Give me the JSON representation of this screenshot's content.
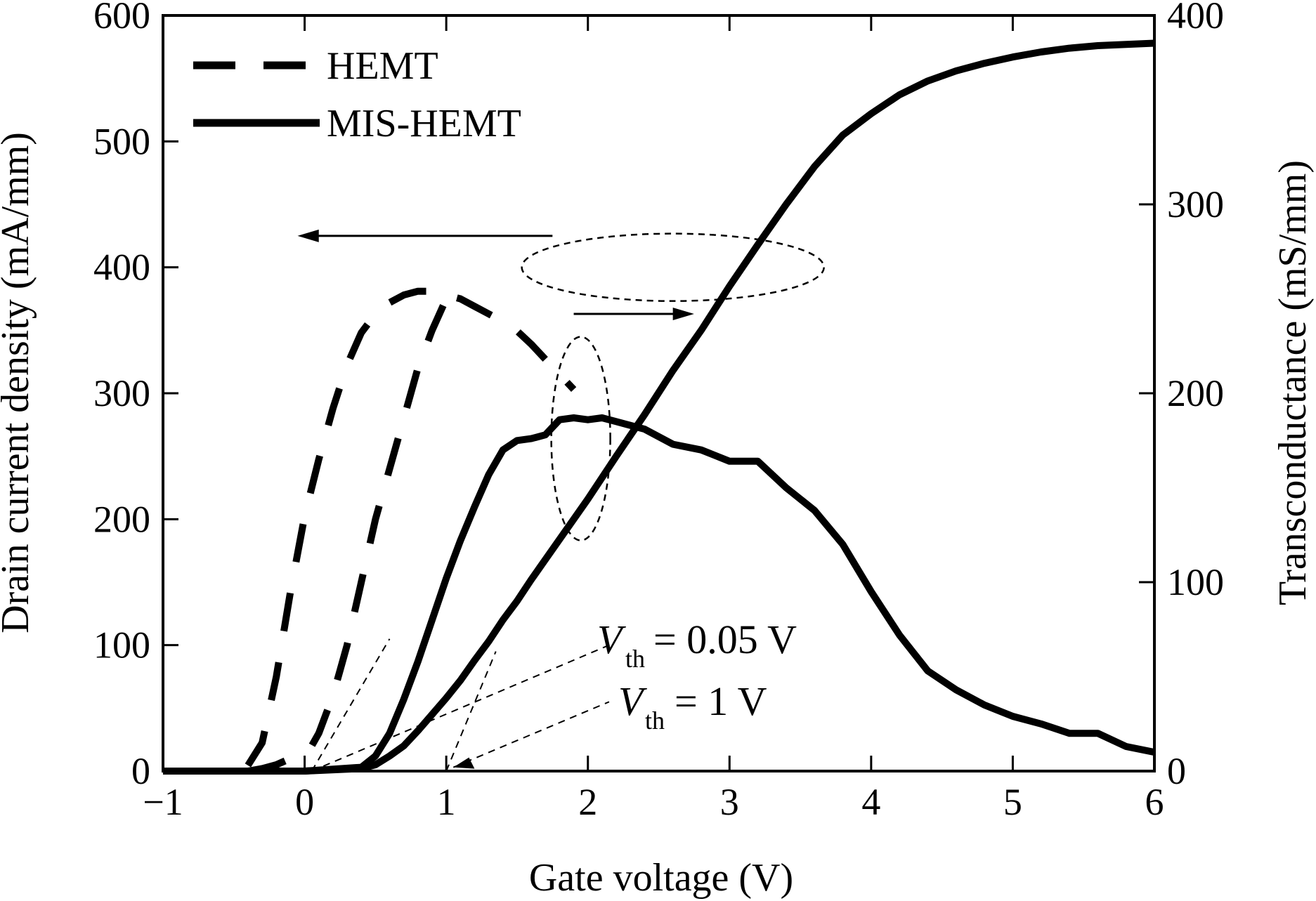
{
  "chart_data": {
    "type": "line",
    "xlabel": "Gate voltage (V)",
    "ylabel": "Drain current density (mA/mm)",
    "y2label": "Transconductance (mS/mm)",
    "xlim": [
      -1,
      6
    ],
    "ylim": [
      0,
      600
    ],
    "y2lim": [
      0,
      400
    ],
    "xticks": [
      "−1",
      "0",
      "1",
      "2",
      "3",
      "4",
      "5",
      "6"
    ],
    "yticks": [
      "0",
      "100",
      "200",
      "300",
      "400",
      "500",
      "600"
    ],
    "y2ticks": [
      "0",
      "100",
      "200",
      "300",
      "400"
    ],
    "legend_position": "top-left",
    "series": [
      {
        "name": "HEMT",
        "style": "dashed",
        "quantity": "drain current",
        "axis": "left",
        "x": [
          -0.4,
          -0.3,
          -0.2,
          -0.1,
          0.0,
          0.05,
          0.1,
          0.15,
          0.2,
          0.25,
          0.3,
          0.35,
          0.4,
          0.5,
          0.6,
          0.7,
          0.8,
          0.9,
          1.0,
          1.05
        ],
        "y": [
          0,
          2,
          5,
          10,
          15,
          20,
          30,
          45,
          60,
          80,
          100,
          125,
          150,
          200,
          240,
          280,
          320,
          350,
          375,
          380
        ]
      },
      {
        "name": "HEMT",
        "style": "dashed",
        "quantity": "transconductance",
        "axis": "right",
        "x": [
          -0.4,
          -0.3,
          -0.2,
          -0.1,
          0.0,
          0.1,
          0.2,
          0.3,
          0.4,
          0.5,
          0.6,
          0.7,
          0.8,
          0.9,
          1.0,
          1.1,
          1.2,
          1.3,
          1.4,
          1.5,
          1.6,
          1.7,
          1.8,
          1.9
        ],
        "y": [
          3,
          15,
          50,
          95,
          135,
          165,
          192,
          215,
          232,
          242,
          248,
          252,
          254,
          254,
          252,
          250,
          246,
          242,
          238,
          233,
          226,
          218,
          210,
          202
        ]
      },
      {
        "name": "MIS-HEMT",
        "style": "solid",
        "quantity": "drain current",
        "axis": "left",
        "x": [
          -1,
          0,
          0.4,
          0.5,
          0.6,
          0.7,
          0.8,
          0.9,
          1.0,
          1.1,
          1.2,
          1.3,
          1.4,
          1.5,
          1.6,
          1.7,
          1.8,
          1.9,
          2.0,
          2.2,
          2.4,
          2.6,
          2.8,
          3.0,
          3.2,
          3.4,
          3.6,
          3.8,
          4.0,
          4.2,
          4.4,
          4.6,
          4.8,
          5.0,
          5.2,
          5.4,
          5.6,
          5.8,
          6.0
        ],
        "y": [
          0,
          0,
          2,
          5,
          12,
          20,
          32,
          45,
          58,
          72,
          88,
          103,
          120,
          135,
          152,
          168,
          184,
          200,
          216,
          250,
          283,
          318,
          350,
          385,
          418,
          450,
          480,
          505,
          522,
          537,
          548,
          556,
          562,
          567,
          571,
          574,
          576,
          577,
          578
        ]
      },
      {
        "name": "MIS-HEMT",
        "style": "solid",
        "quantity": "transconductance",
        "axis": "right",
        "x": [
          -1,
          0,
          0.4,
          0.5,
          0.6,
          0.7,
          0.8,
          0.9,
          1.0,
          1.1,
          1.2,
          1.3,
          1.4,
          1.5,
          1.6,
          1.7,
          1.8,
          1.9,
          2.0,
          2.1,
          2.2,
          2.4,
          2.6,
          2.8,
          3.0,
          3.2,
          3.4,
          3.6,
          3.8,
          4.0,
          4.2,
          4.4,
          4.6,
          4.8,
          5.0,
          5.2,
          5.4,
          5.6,
          5.8,
          6.0
        ],
        "y": [
          0,
          0,
          2,
          8,
          20,
          38,
          58,
          80,
          102,
          122,
          140,
          157,
          170,
          175,
          176,
          178,
          186,
          187,
          186,
          187,
          185,
          181,
          173,
          170,
          164,
          164,
          150,
          138,
          120,
          95,
          72,
          53,
          43,
          35,
          29,
          25,
          20,
          20,
          13,
          10
        ]
      }
    ],
    "annotations": [
      {
        "text": "V",
        "subscript": "th",
        "rest": " = 0.05 V",
        "points_to_x": 0.05,
        "points_to_y": 0
      },
      {
        "text": "V",
        "subscript": "th",
        "rest": " = 1 V",
        "points_to_x": 1,
        "points_to_y": 0
      }
    ]
  }
}
